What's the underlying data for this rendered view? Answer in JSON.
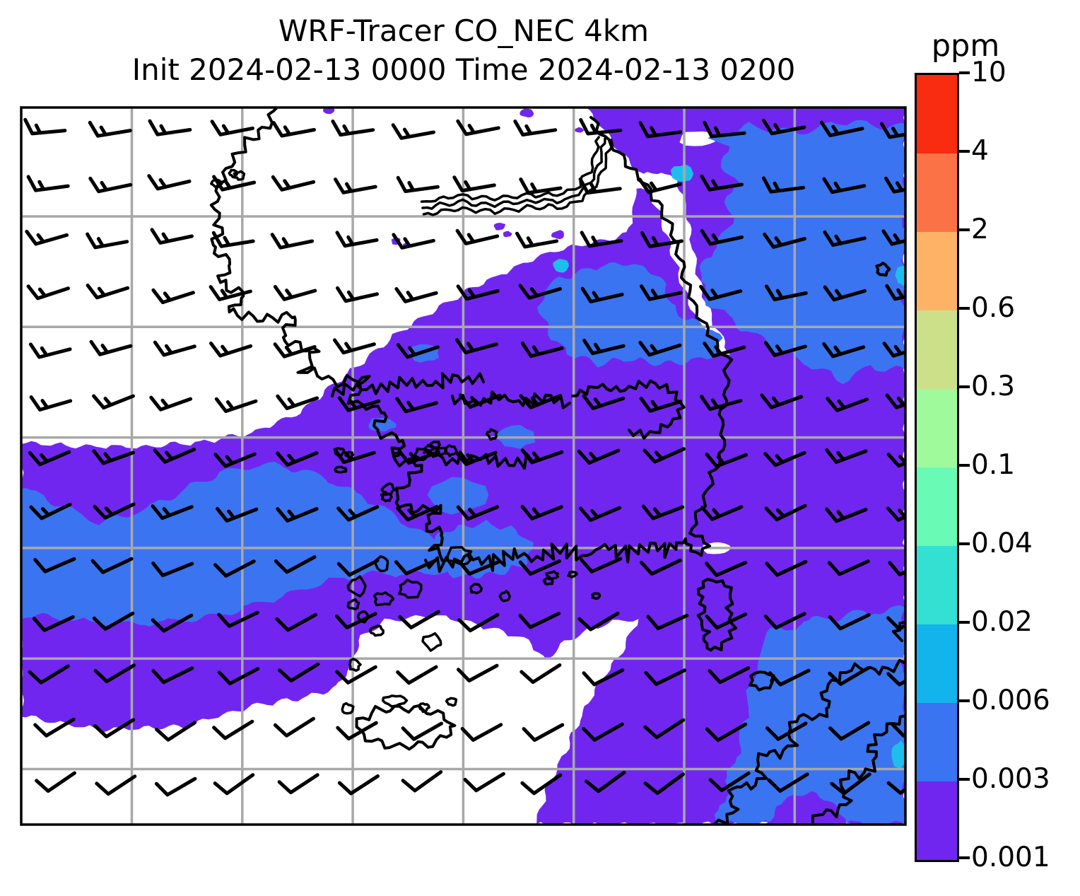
{
  "title": {
    "line1": "WRF-Tracer CO_NEC 4km",
    "line2": "Init 2024-02-13 0000 Time 2024-02-13 0200"
  },
  "colorbar": {
    "label": "ppm",
    "tick_labels": [
      "10",
      "4",
      "2",
      "0.6",
      "0.3",
      "0.1",
      "0.04",
      "0.02",
      "0.006",
      "0.003",
      "0.001"
    ],
    "segment_colors_top_to_bottom": [
      "#F92B10",
      "#FB7246",
      "#FDB366",
      "#CCE08A",
      "#9EFA9B",
      "#69FAB5",
      "#33E0D2",
      "#12B4EB",
      "#3B74F0",
      "#7126F0"
    ]
  },
  "map": {
    "colors": {
      "background": "#FFFFFF",
      "fill_0p001_0p003": "#7126F0",
      "fill_0p003_0p006": "#3B74F0",
      "fill_0p006_0p02": "#1FBEEA",
      "gridline": "#A8A8A8",
      "coastline": "#000000",
      "wind_barb": "#000000",
      "frame": "#000000"
    }
  },
  "chart_data": {
    "type": "heatmap",
    "title": "WRF-Tracer CO_NEC 4km",
    "subtitle": "Init 2024-02-13 0000 Time 2024-02-13 0200",
    "units": "ppm",
    "legend_position": "right",
    "grid": true,
    "region": "Korean Peninsula, Yellow Sea, Korea Strait, Sea of Japan, northern Kyushu",
    "colorbar_levels_low_to_high": [
      0.001,
      0.003,
      0.006,
      0.02,
      0.04,
      0.1,
      0.3,
      0.6,
      2,
      4,
      10
    ],
    "colorbar_colors_low_to_high": [
      "#7126F0",
      "#3B74F0",
      "#12B4EB",
      "#33E0D2",
      "#69FAB5",
      "#9EFA9B",
      "#CCE08A",
      "#FDB366",
      "#FB7246",
      "#F92B10"
    ],
    "overlays": [
      "wind barbs (black, from northwest, one full barb)",
      "coastlines",
      "latitude-longitude gridlines",
      "DMZ triple boundary line"
    ],
    "visible_levels_on_map": [
      {
        "range_ppm": "0.001-0.003",
        "color": "#7126F0",
        "coverage": "central and southern Korea, Yellow Sea band, top-right strip, bottom-center plume"
      },
      {
        "range_ppm": "0.003-0.006",
        "color": "#3B74F0",
        "coverage": "large Sea of Japan blob (northeast), Yellow Sea horizontal band, southeast corner near Kyushu, small inland patches"
      },
      {
        "range_ppm": "0.006-0.02",
        "color": "#1FBEEA",
        "coverage": "few tiny patches near east coast and right edge"
      }
    ],
    "unfilled_below_ppm": 0.001,
    "white_areas": "northwest quadrant (North Korea region), Korea Strait around Jeju, coastal wedge along upper east coast"
  }
}
